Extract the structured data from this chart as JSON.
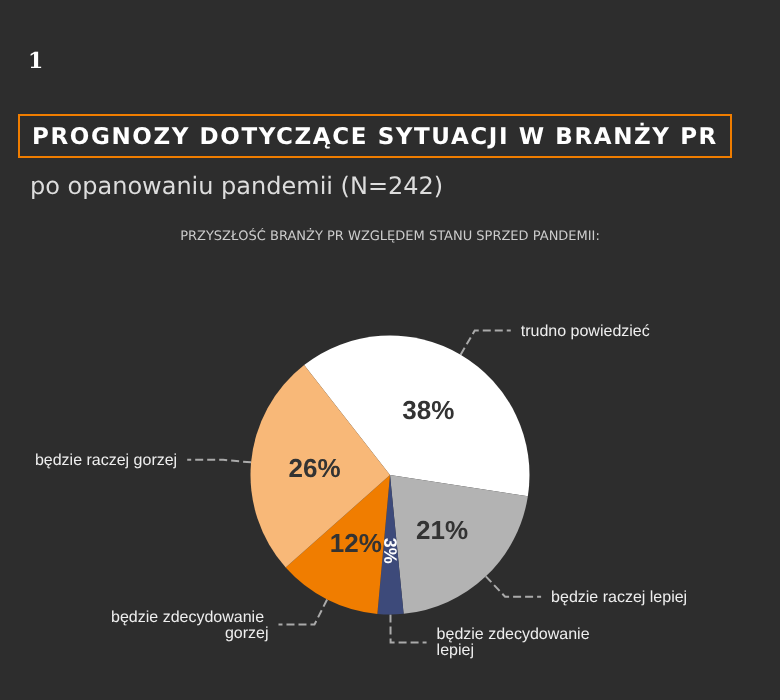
{
  "chart_data": {
    "type": "pie",
    "title": "PROGNOZY DOTYCZĄCE SYTUACJI W BRANŻY PR",
    "subtitle": "po opanowaniu pandemii (N=242)",
    "annotations": [
      "1",
      "PRZYSZŁOŚĆ BRANŻY PR WZGLĘDEM STANU SPRZED PANDEMII:"
    ],
    "categories": [
      "trudno powiedzieć",
      "będzie raczej lepiej",
      "będzie zdecydowanie lepiej",
      "będzie zdecydowanie gorzej",
      "będzie raczej gorzej"
    ],
    "values": [
      38,
      21,
      3,
      12,
      26
    ],
    "colors": [
      "#ffffff",
      "#b3b3b3",
      "#3d4a7a",
      "#f07d00",
      "#f8b878"
    ],
    "value_labels": [
      "38%",
      "21%",
      "3%",
      "12%",
      "26%"
    ],
    "legend": false
  }
}
